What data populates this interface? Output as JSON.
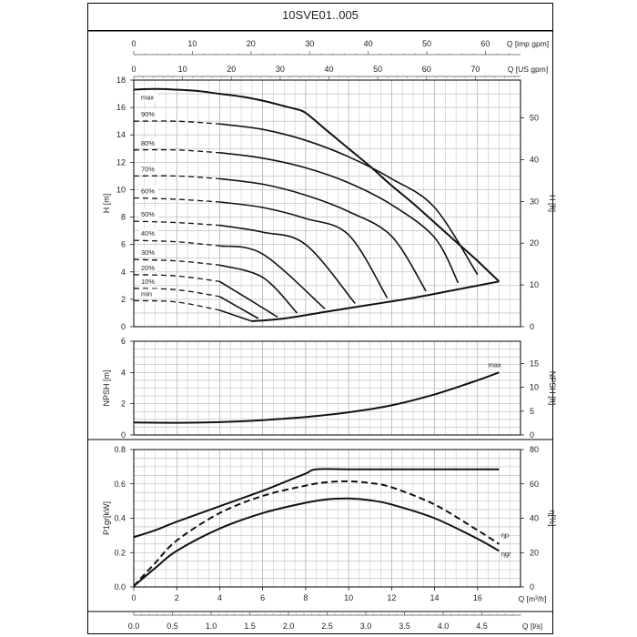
{
  "page": {
    "title": "10SVE01..005"
  },
  "axes": {
    "q_imp_gpm": {
      "label": "Q [imp gpm]",
      "ticks": [
        0,
        10,
        20,
        30,
        40,
        50,
        60
      ]
    },
    "q_us_gpm": {
      "label": "Q [US gpm]",
      "ticks": [
        0,
        10,
        20,
        30,
        40,
        50,
        60,
        70
      ]
    },
    "q_m3h": {
      "label": "Q [m³/h]",
      "ticks": [
        0,
        2,
        4,
        6,
        8,
        10,
        12,
        14,
        16
      ]
    },
    "q_ls": {
      "label": "Q [l/s]",
      "ticks": [
        "0.0",
        "0.5",
        "1.0",
        "1.5",
        "2.0",
        "2.5",
        "3.0",
        "3.5",
        "4.0",
        "4.5"
      ]
    }
  },
  "chart_data": [
    {
      "type": "line",
      "title": "",
      "xlabel": "Q [m³/h]",
      "ylabel": "H [m]",
      "ylabel_right": "H [ft]",
      "xlim": [
        0,
        18
      ],
      "ylim": [
        0,
        18
      ],
      "yticks": [
        0,
        2,
        4,
        6,
        8,
        10,
        12,
        14,
        16,
        18
      ],
      "yticks_right": [
        0,
        10,
        20,
        30,
        40,
        50
      ],
      "grid": true,
      "series": [
        {
          "name": "max",
          "x": [
            0,
            1,
            2,
            3,
            4,
            5,
            6,
            7,
            7.5,
            8,
            9,
            10,
            11,
            12,
            13,
            14,
            15,
            16,
            17
          ],
          "y": [
            17.3,
            17.35,
            17.3,
            17.2,
            17.0,
            16.8,
            16.5,
            16.1,
            15.9,
            15.6,
            14.3,
            13.0,
            11.7,
            10.3,
            9.0,
            7.6,
            6.2,
            4.8,
            3.3
          ]
        },
        {
          "name": "90%",
          "x": [
            0,
            2,
            4,
            6,
            8,
            10,
            12,
            14,
            16
          ],
          "y": [
            15.0,
            15.0,
            14.8,
            14.4,
            13.6,
            12.4,
            10.8,
            8.7,
            3.8
          ]
        },
        {
          "name": "80%",
          "x": [
            0,
            2,
            4,
            6,
            8,
            10,
            12,
            14,
            15.1
          ],
          "y": [
            12.9,
            12.9,
            12.7,
            12.3,
            11.6,
            10.5,
            8.9,
            6.5,
            3.2
          ]
        },
        {
          "name": "70%",
          "x": [
            0,
            2,
            4,
            6,
            8,
            10,
            12,
            13.6
          ],
          "y": [
            11.0,
            11.0,
            10.8,
            10.4,
            9.6,
            8.4,
            6.6,
            2.6
          ]
        },
        {
          "name": "60%",
          "x": [
            0,
            2,
            4,
            6,
            8,
            10,
            11.8
          ],
          "y": [
            9.4,
            9.3,
            9.1,
            8.7,
            7.9,
            6.7,
            2.1
          ]
        },
        {
          "name": "50%",
          "x": [
            0,
            2,
            4,
            6,
            8,
            10.3
          ],
          "y": [
            7.7,
            7.6,
            7.4,
            6.9,
            6.0,
            1.7
          ]
        },
        {
          "name": "40%",
          "x": [
            0,
            2,
            4,
            6,
            8.9
          ],
          "y": [
            6.3,
            6.2,
            5.9,
            5.3,
            1.3
          ]
        },
        {
          "name": "30%",
          "x": [
            0,
            2,
            4,
            6,
            7.6
          ],
          "y": [
            4.9,
            4.8,
            4.5,
            3.6,
            1.0
          ]
        },
        {
          "name": "20%",
          "x": [
            0,
            2,
            4,
            6.7
          ],
          "y": [
            3.8,
            3.7,
            3.3,
            0.7
          ]
        },
        {
          "name": "10%",
          "x": [
            0,
            2,
            4,
            5.8
          ],
          "y": [
            2.8,
            2.7,
            2.2,
            0.6
          ]
        },
        {
          "name": "min",
          "x": [
            0,
            2,
            4,
            5.5
          ],
          "y": [
            1.9,
            1.8,
            1.2,
            0.4
          ]
        },
        {
          "name": "lower limit",
          "x": [
            5.5,
            7,
            9,
            11,
            13,
            15,
            17
          ],
          "y": [
            0.4,
            0.6,
            1.1,
            1.6,
            2.1,
            2.7,
            3.3
          ]
        }
      ]
    },
    {
      "type": "line",
      "title": "",
      "xlabel": "Q [m³/h]",
      "ylabel": "NPSH [m]",
      "ylabel_right": "NPSH [ft]",
      "xlim": [
        0,
        18
      ],
      "ylim": [
        0,
        6
      ],
      "yticks": [
        0,
        2,
        4,
        6
      ],
      "yticks_right": [
        0,
        5,
        10,
        15
      ],
      "grid": true,
      "series": [
        {
          "name": "max",
          "x": [
            0,
            2,
            4,
            6,
            8,
            10,
            12,
            14,
            16,
            17
          ],
          "y": [
            0.8,
            0.78,
            0.82,
            0.95,
            1.15,
            1.45,
            1.9,
            2.6,
            3.5,
            4.0
          ]
        }
      ]
    },
    {
      "type": "line",
      "title": "",
      "xlabel": "Q [m³/h]",
      "ylabel": "P1gr[kW]",
      "ylabel_right": "η[%]",
      "xlim": [
        0,
        18
      ],
      "ylim": [
        0,
        0.8
      ],
      "yticks": [
        "0.0",
        "0.2",
        "0.4",
        "0.6",
        "0.8"
      ],
      "yticks_right": [
        0,
        20,
        40,
        60,
        80
      ],
      "grid": true,
      "series": [
        {
          "name": "P1",
          "x": [
            0,
            1,
            2,
            4,
            6,
            7,
            8,
            8.5,
            10,
            12,
            14,
            16,
            17
          ],
          "y": [
            0.29,
            0.33,
            0.38,
            0.47,
            0.56,
            0.61,
            0.66,
            0.685,
            0.685,
            0.685,
            0.685,
            0.685,
            0.685
          ]
        },
        {
          "name": "ηp",
          "x": [
            0,
            1,
            2,
            4,
            6,
            8,
            9,
            10,
            11,
            12,
            14,
            16,
            17
          ],
          "y": [
            0.5,
            14,
            27,
            43,
            53,
            59,
            61,
            61.5,
            60.5,
            58,
            48,
            33,
            25
          ]
        },
        {
          "name": "ηgr",
          "x": [
            0,
            1,
            2,
            4,
            6,
            8,
            9,
            10,
            11,
            12,
            14,
            16,
            17
          ],
          "y": [
            0.5,
            11,
            21,
            34,
            43,
            49,
            51,
            51.5,
            50.5,
            48,
            40,
            28,
            21
          ]
        }
      ]
    }
  ]
}
